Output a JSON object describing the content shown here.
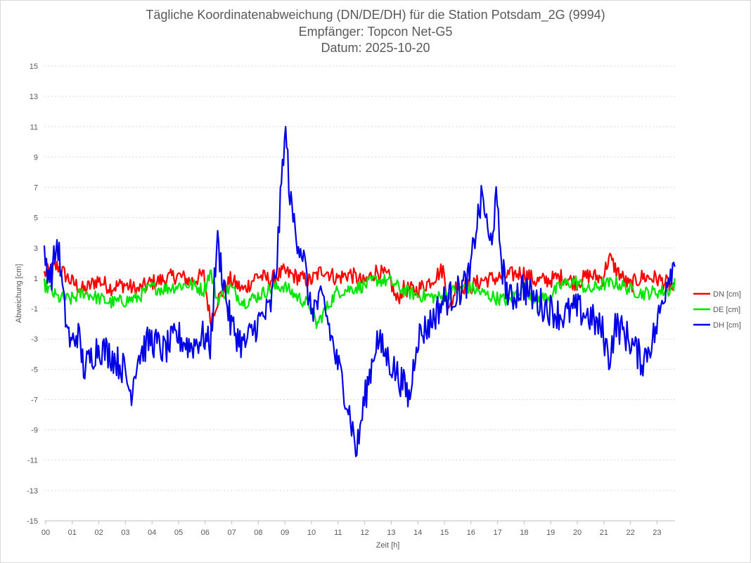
{
  "chart_data": {
    "type": "line",
    "title": "Tägliche Koordinatenabweichung (DN/DE/DH) für die Station Potsdam_2G (9994)",
    "subtitle": "Empfänger: Topcon Net-G5",
    "date_label": "Datum: 2025-10-20",
    "xlabel": "Zeit [h]",
    "ylabel": "Abweichung [cm]",
    "xlim": [
      0,
      23.75
    ],
    "ylim": [
      -15,
      15
    ],
    "x_ticks": [
      "00",
      "01",
      "02",
      "03",
      "04",
      "05",
      "06",
      "07",
      "08",
      "09",
      "10",
      "11",
      "12",
      "13",
      "14",
      "15",
      "16",
      "17",
      "18",
      "19",
      "20",
      "21",
      "22",
      "23"
    ],
    "y_ticks": [
      15,
      13,
      11,
      9,
      7,
      5,
      3,
      1,
      -1,
      -3,
      -5,
      -7,
      -9,
      -11,
      -13,
      -15
    ],
    "grid": true,
    "legend_position": "right",
    "series": [
      {
        "name": "DN [cm]",
        "color": "#ff0000",
        "x": [
          0,
          0.5,
          1,
          1.5,
          2,
          2.5,
          3,
          3.5,
          4,
          4.5,
          5,
          5.5,
          6,
          6.25,
          6.5,
          7,
          7.5,
          8,
          8.5,
          9,
          9.5,
          10,
          10.5,
          11,
          11.5,
          12,
          12.5,
          13,
          13.25,
          13.5,
          14,
          14.5,
          15,
          15.25,
          15.5,
          16,
          16.5,
          17,
          17.5,
          18,
          18.5,
          19,
          19.5,
          20,
          20.5,
          21,
          21.25,
          21.5,
          22,
          22.5,
          23,
          23.5,
          23.75
        ],
        "values": [
          1.3,
          1.8,
          0.8,
          0.2,
          0.9,
          0.4,
          0.6,
          0.2,
          0.7,
          0.9,
          1.2,
          0.8,
          1.2,
          -1.8,
          -0.5,
          0.9,
          0.2,
          1.2,
          0.9,
          1.4,
          1.1,
          0.8,
          1.6,
          1.0,
          1.3,
          0.7,
          1.5,
          1.0,
          -0.5,
          0.3,
          0.2,
          0.8,
          1.6,
          -1.2,
          0.6,
          0.4,
          0.9,
          1.0,
          1.2,
          1.4,
          0.8,
          0.9,
          1.1,
          0.7,
          1.2,
          1.0,
          2.4,
          1.6,
          0.5,
          1.1,
          1.0,
          0.6,
          0.0
        ]
      },
      {
        "name": "DE [cm]",
        "color": "#00e600",
        "x": [
          0,
          0.5,
          1,
          1.5,
          2,
          2.5,
          3,
          3.5,
          4,
          4.5,
          5,
          5.5,
          6,
          6.25,
          6.5,
          7,
          7.5,
          8,
          8.5,
          9,
          9.5,
          10,
          10.25,
          10.5,
          11,
          11.5,
          12,
          12.5,
          13,
          13.5,
          14,
          14.5,
          15,
          15.5,
          16,
          16.5,
          17,
          17.5,
          18,
          18.5,
          19,
          19.5,
          20,
          20.5,
          21,
          21.5,
          22,
          22.5,
          23,
          23.5,
          23.75
        ],
        "values": [
          0.6,
          -0.3,
          -0.4,
          0.1,
          -0.3,
          -0.6,
          -0.5,
          -0.3,
          0.4,
          0.3,
          0.5,
          0.6,
          0.2,
          1.5,
          -0.4,
          0.4,
          -0.6,
          -0.2,
          0.3,
          0.5,
          -0.2,
          -0.8,
          -2.1,
          -1.3,
          0.1,
          0.3,
          0.5,
          0.9,
          0.8,
          0.2,
          -0.1,
          -0.2,
          -0.3,
          0.3,
          0.4,
          0.0,
          -0.3,
          -0.5,
          0.5,
          -0.4,
          -0.2,
          0.6,
          0.8,
          0.2,
          0.6,
          0.7,
          0.3,
          0.0,
          0.1,
          0.2,
          0.7
        ]
      },
      {
        "name": "DH [cm]",
        "color": "#0000e6",
        "x": [
          0,
          0.25,
          0.5,
          0.75,
          1,
          1.25,
          1.5,
          2,
          2.5,
          3,
          3.25,
          3.5,
          4,
          4.5,
          5,
          5.5,
          6,
          6.25,
          6.5,
          7,
          7.5,
          8,
          8.5,
          8.75,
          9,
          9.1,
          9.25,
          9.5,
          9.75,
          10,
          10.5,
          11,
          11.25,
          11.5,
          11.75,
          12,
          12.5,
          13,
          13.5,
          13.75,
          14,
          14.5,
          15,
          15.5,
          16,
          16.25,
          16.5,
          16.75,
          17,
          17.25,
          17.5,
          18,
          18.5,
          19,
          19.5,
          20,
          20.5,
          21,
          21.25,
          21.5,
          22,
          22.5,
          23,
          23.5,
          23.75
        ],
        "values": [
          2.5,
          1.0,
          3.5,
          -1.0,
          -3.5,
          -2.5,
          -5.0,
          -3.5,
          -4.0,
          -5.0,
          -6.6,
          -4.2,
          -3.0,
          -3.8,
          -2.8,
          -3.5,
          -2.8,
          -3.5,
          3.5,
          -2.0,
          -3.5,
          -2.0,
          -1.0,
          2.0,
          9.5,
          10.5,
          6.0,
          3.8,
          2.5,
          -1.0,
          -0.5,
          -4.5,
          -6.0,
          -8.0,
          -10.5,
          -7.5,
          -3.0,
          -4.5,
          -6.0,
          -7.0,
          -3.0,
          -2.0,
          -0.5,
          0.0,
          1.0,
          4.5,
          6.5,
          3.0,
          6.0,
          1.5,
          -0.5,
          0.5,
          -0.5,
          -1.0,
          -1.5,
          -1.0,
          -1.5,
          -2.5,
          -4.3,
          -2.0,
          -3.0,
          -4.5,
          -2.5,
          1.5,
          2.0
        ]
      }
    ]
  }
}
